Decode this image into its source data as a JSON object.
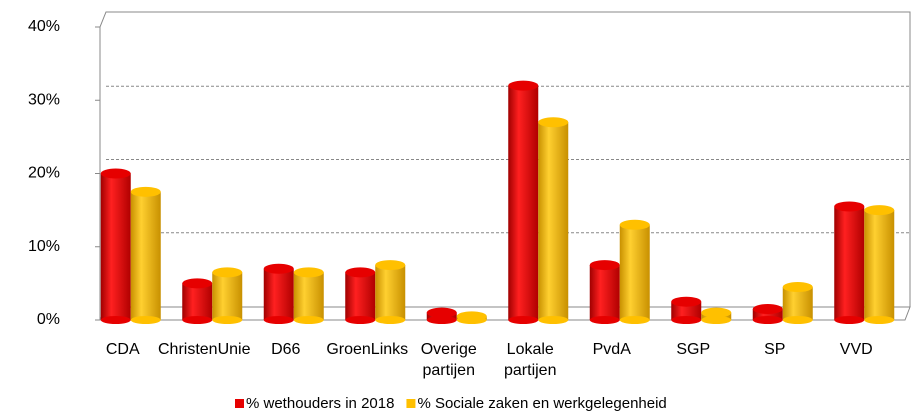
{
  "chart_data": {
    "type": "bar",
    "categories": [
      "CDA",
      "ChristenUnie",
      "D66",
      "GroenLinks",
      "Overige partijen",
      "Lokale partijen",
      "PvdA",
      "SGP",
      "SP",
      "VVD"
    ],
    "series": [
      {
        "name": "% wethouders in 2018",
        "color": "#e60000",
        "values": [
          20,
          5,
          7,
          6.5,
          1,
          32,
          7.5,
          2.5,
          1.5,
          15.5
        ]
      },
      {
        "name": "% Sociale zaken en werkgelegenheid",
        "color": "#ffc000",
        "values": [
          17.5,
          6.5,
          6.5,
          7.5,
          0.5,
          27,
          13,
          1,
          4.5,
          15
        ]
      }
    ],
    "ylim": [
      0,
      40
    ],
    "yticks": [
      {
        "value": 0,
        "label": "0%"
      },
      {
        "value": 10,
        "label": "10%"
      },
      {
        "value": 20,
        "label": "20%"
      },
      {
        "value": 30,
        "label": "30%"
      },
      {
        "value": 40,
        "label": "40%"
      }
    ],
    "grid": true,
    "legend": "bottom"
  }
}
